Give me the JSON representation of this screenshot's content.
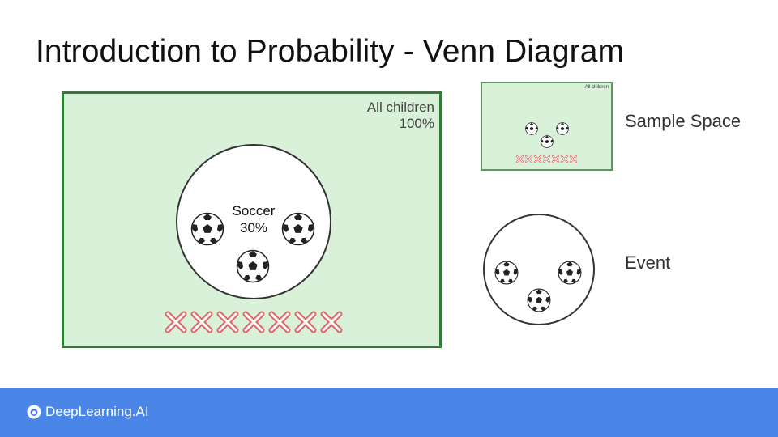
{
  "title": "Introduction to Probability - Venn Diagram",
  "main_diagram": {
    "universe_label": "All children",
    "universe_percent": "100%",
    "event_label": "Soccer",
    "event_percent": "30%",
    "soccer_ball_count": 3,
    "non_event_mark_count": 7,
    "universe_color": "#d9f0d9",
    "universe_border_color": "#2e7d32",
    "mark_color": "#e06666"
  },
  "legend": {
    "sample_space_label": "Sample Space",
    "sample_space_mini_label": "All children",
    "event_label": "Event"
  },
  "footer": {
    "brand": "DeepLearning.AI",
    "background_color": "#4a86e8"
  }
}
